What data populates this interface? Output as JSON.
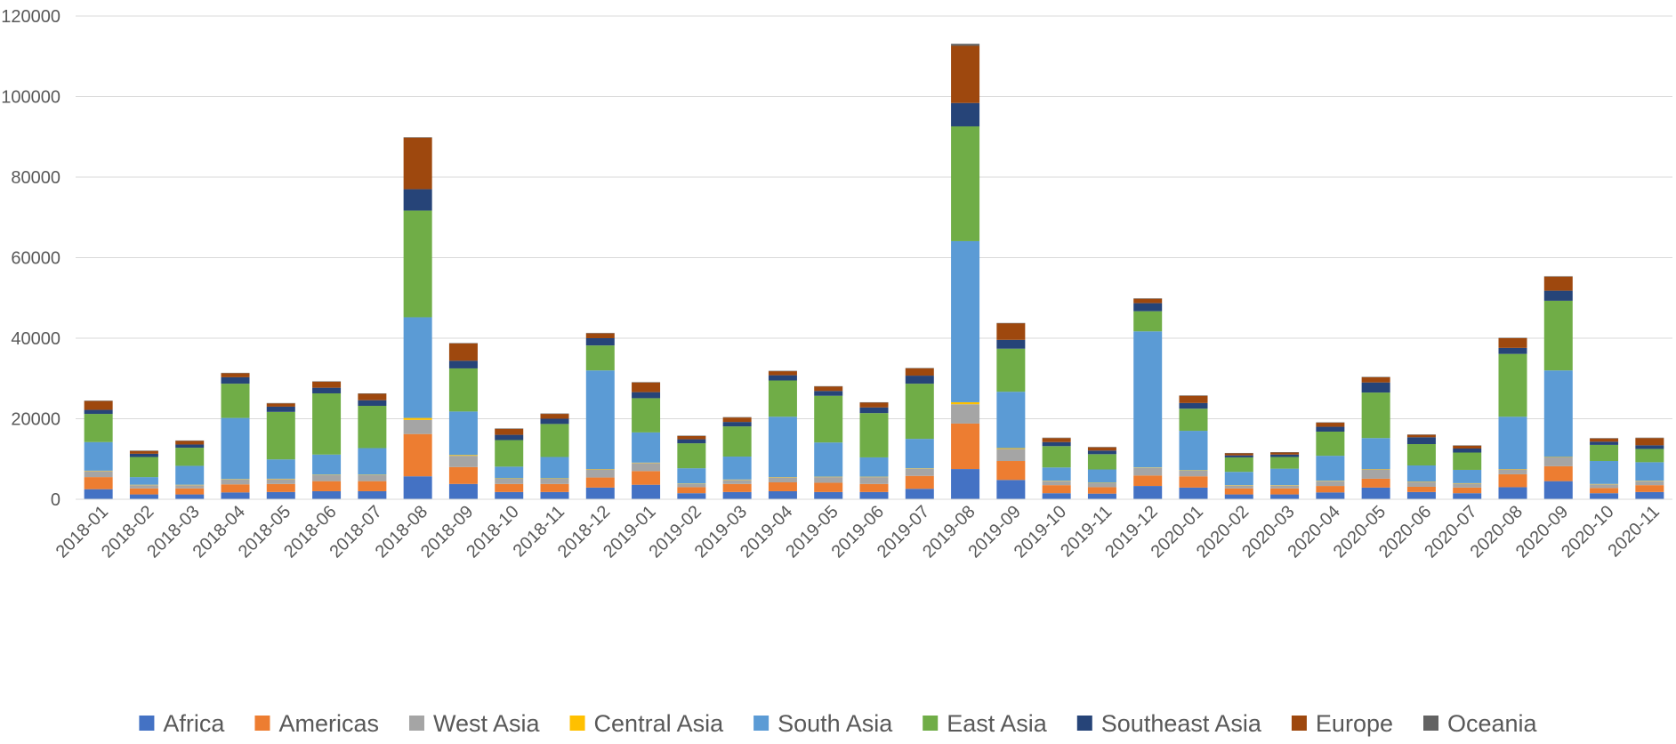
{
  "chart_data": {
    "type": "bar",
    "stacked": true,
    "ylim": [
      0,
      120000
    ],
    "yticks": [
      "0",
      "20000",
      "40000",
      "60000",
      "80000",
      "100000",
      "120000"
    ],
    "grid": true,
    "legend_position": "bottom",
    "categories": [
      "2018-01",
      "2018-02",
      "2018-03",
      "2018-04",
      "2018-05",
      "2018-06",
      "2018-07",
      "2018-08",
      "2018-09",
      "2018-10",
      "2018-11",
      "2018-12",
      "2019-01",
      "2019-02",
      "2019-03",
      "2019-04",
      "2019-05",
      "2019-06",
      "2019-07",
      "2019-08",
      "2019-09",
      "2019-10",
      "2019-11",
      "2019-12",
      "2020-01",
      "2020-02",
      "2020-03",
      "2020-04",
      "2020-05",
      "2020-06",
      "2020-07",
      "2020-08",
      "2020-09",
      "2020-10",
      "2020-11"
    ],
    "series": [
      {
        "name": "Africa",
        "color": "#4472C4",
        "values": [
          2500,
          1200,
          1200,
          1700,
          1800,
          2000,
          2000,
          5700,
          3800,
          1800,
          1800,
          2900,
          3600,
          1500,
          1800,
          2000,
          1800,
          1800,
          2600,
          7500,
          4800,
          1500,
          1400,
          3300,
          2900,
          1200,
          1200,
          1700,
          2900,
          1800,
          1500,
          3000,
          4500,
          1500,
          1800
        ]
      },
      {
        "name": "Americas",
        "color": "#ED7D31",
        "values": [
          3000,
          1500,
          1500,
          2000,
          2000,
          2500,
          2500,
          10500,
          4200,
          2000,
          2000,
          2500,
          3400,
          1500,
          2000,
          2200,
          2300,
          2000,
          3200,
          11300,
          4700,
          2000,
          1600,
          2600,
          2800,
          1500,
          1500,
          1600,
          2200,
          1300,
          1400,
          3200,
          3700,
          1300,
          1700
        ]
      },
      {
        "name": "West Asia",
        "color": "#A5A5A5",
        "values": [
          1500,
          800,
          800,
          1200,
          1200,
          1500,
          1500,
          3500,
          2800,
          1300,
          1300,
          2000,
          2000,
          800,
          1000,
          1200,
          1400,
          1700,
          1800,
          4800,
          3000,
          1000,
          1000,
          1900,
          1400,
          700,
          700,
          1200,
          2300,
          1200,
          1000,
          1200,
          2200,
          900,
          1000
        ]
      },
      {
        "name": "Central Asia",
        "color": "#FFC000",
        "values": [
          100,
          100,
          100,
          100,
          100,
          100,
          100,
          500,
          200,
          100,
          100,
          100,
          100,
          100,
          100,
          100,
          100,
          100,
          100,
          500,
          200,
          100,
          100,
          100,
          100,
          100,
          100,
          100,
          100,
          100,
          100,
          100,
          100,
          100,
          100
        ]
      },
      {
        "name": "South Asia",
        "color": "#5B9BD5",
        "values": [
          7100,
          1900,
          4700,
          15200,
          4800,
          5000,
          6600,
          25000,
          10800,
          2900,
          5300,
          24500,
          7500,
          3800,
          5700,
          15000,
          8500,
          4800,
          7300,
          40000,
          14000,
          3300,
          3300,
          33800,
          9800,
          3300,
          4100,
          6200,
          7700,
          4000,
          3300,
          13000,
          21500,
          5700,
          4600
        ]
      },
      {
        "name": "East Asia",
        "color": "#70AD47",
        "values": [
          7000,
          5000,
          4500,
          8500,
          11800,
          15200,
          10500,
          26500,
          10700,
          6600,
          8200,
          6200,
          8500,
          6200,
          7500,
          9000,
          11600,
          11000,
          13700,
          28500,
          10700,
          5300,
          3800,
          5000,
          5500,
          3600,
          2900,
          6000,
          11300,
          5300,
          4300,
          15600,
          17300,
          4000,
          3300
        ]
      },
      {
        "name": "Southeast Asia",
        "color": "#264478",
        "values": [
          1000,
          800,
          800,
          1600,
          1300,
          1400,
          1400,
          5300,
          1900,
          1300,
          1300,
          1800,
          1500,
          1000,
          1100,
          1300,
          1200,
          1400,
          2000,
          5800,
          2200,
          1000,
          900,
          2000,
          1400,
          500,
          600,
          1200,
          2500,
          1700,
          1000,
          1500,
          2500,
          800,
          900
        ]
      },
      {
        "name": "Europe",
        "color": "#9E480E",
        "values": [
          2200,
          700,
          900,
          1000,
          800,
          1500,
          1600,
          12800,
          4300,
          1500,
          1200,
          1200,
          2400,
          800,
          1100,
          1000,
          1100,
          1200,
          1800,
          14200,
          4100,
          1000,
          800,
          1100,
          1800,
          500,
          500,
          1000,
          1300,
          600,
          700,
          2400,
          3500,
          800,
          1800
        ]
      },
      {
        "name": "Oceania",
        "color": "#636363",
        "values": [
          100,
          100,
          100,
          100,
          100,
          100,
          100,
          100,
          100,
          100,
          100,
          100,
          100,
          100,
          100,
          100,
          100,
          100,
          100,
          500,
          100,
          100,
          100,
          100,
          100,
          100,
          100,
          100,
          100,
          100,
          100,
          100,
          100,
          100,
          100
        ]
      }
    ]
  }
}
